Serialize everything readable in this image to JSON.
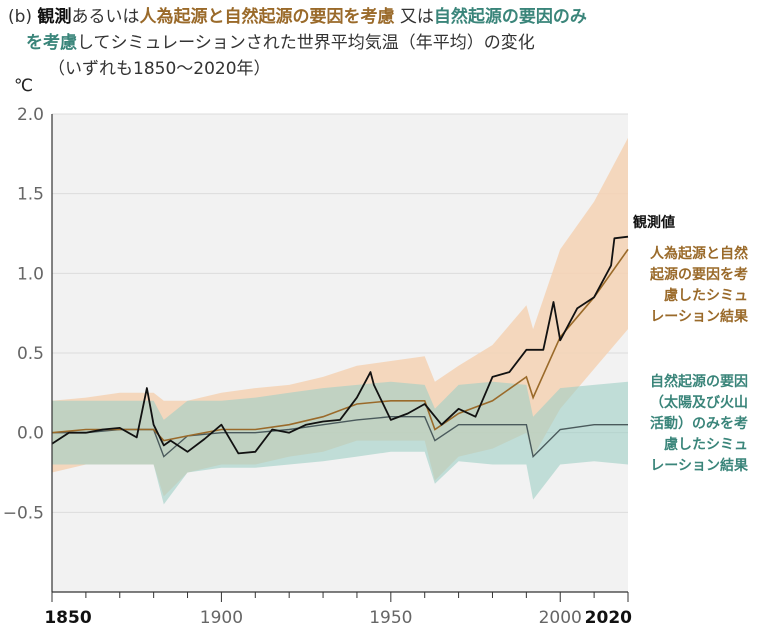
{
  "title": {
    "prefix": "(b) ",
    "observed": "観測",
    "t1": "あるいは",
    "human_natural": "人為起源と自然起源の要因を考慮",
    "t2": " 又は",
    "natural_only": "自然起源の要因のみ",
    "natural_only_2": "を考慮",
    "t3": "してシミュレーションされた世界平均気温（年平均）の変化",
    "line3": "（いずれも1850～2020年）"
  },
  "colors": {
    "observed": "#111111",
    "human_natural_band": "#f5d2b4",
    "human_natural_line": "#9a6a2a",
    "natural_band": "#9ecfc5",
    "natural_line": "#4a5a5c",
    "overlap": "#c3b59c",
    "grid": "#dcdcdc",
    "plot_bg": "#f2f2f2"
  },
  "chart_data": {
    "type": "line",
    "ylabel": "℃",
    "xlim": [
      1850,
      2020
    ],
    "ylim": [
      -1.0,
      2.0
    ],
    "y_ticks": [
      "2.0",
      "1.5",
      "1.0",
      "0.5",
      "0.0",
      "−0.5"
    ],
    "x_ticks": [
      "1850",
      "1900",
      "1950",
      "2000",
      "2020"
    ],
    "annotations": {
      "observed": [
        "観測値"
      ],
      "human_natural": [
        "人為起源と自然",
        "起源の要因を考",
        "慮したシミュ",
        "レーション結果"
      ],
      "natural": [
        "自然起源の要因",
        "（太陽及び火山",
        "活動）のみを考",
        "慮したシミュ",
        "レーション結果"
      ]
    },
    "series": [
      {
        "name": "観測値",
        "x": [
          1850,
          1855,
          1860,
          1865,
          1870,
          1875,
          1878,
          1880,
          1883,
          1885,
          1890,
          1895,
          1900,
          1905,
          1910,
          1915,
          1920,
          1925,
          1930,
          1935,
          1940,
          1944,
          1945,
          1950,
          1955,
          1960,
          1965,
          1970,
          1975,
          1980,
          1985,
          1990,
          1995,
          1998,
          2000,
          2005,
          2010,
          2015,
          2016,
          2020
        ],
        "y": [
          -0.07,
          0.0,
          0.0,
          0.02,
          0.03,
          -0.03,
          0.28,
          0.05,
          -0.08,
          -0.05,
          -0.12,
          -0.04,
          0.05,
          -0.13,
          -0.12,
          0.02,
          0.0,
          0.05,
          0.07,
          0.08,
          0.22,
          0.38,
          0.3,
          0.08,
          0.12,
          0.18,
          0.05,
          0.15,
          0.1,
          0.35,
          0.38,
          0.52,
          0.52,
          0.82,
          0.58,
          0.78,
          0.85,
          1.05,
          1.22,
          1.23
        ]
      },
      {
        "name": "人為起源と自然起源の要因を考慮",
        "x": [
          1850,
          1860,
          1870,
          1880,
          1883,
          1890,
          1900,
          1910,
          1920,
          1930,
          1940,
          1950,
          1960,
          1963,
          1970,
          1980,
          1990,
          1992,
          2000,
          2010,
          2020
        ],
        "y": [
          0.0,
          0.02,
          0.02,
          0.02,
          -0.05,
          -0.02,
          0.02,
          0.02,
          0.05,
          0.1,
          0.18,
          0.2,
          0.2,
          0.02,
          0.12,
          0.2,
          0.35,
          0.22,
          0.6,
          0.85,
          1.15
        ],
        "upper": [
          0.2,
          0.22,
          0.25,
          0.25,
          0.2,
          0.2,
          0.25,
          0.28,
          0.3,
          0.35,
          0.42,
          0.45,
          0.48,
          0.32,
          0.42,
          0.55,
          0.8,
          0.65,
          1.15,
          1.45,
          1.85
        ],
        "lower": [
          -0.25,
          -0.2,
          -0.2,
          -0.2,
          -0.4,
          -0.25,
          -0.2,
          -0.2,
          -0.15,
          -0.12,
          -0.05,
          -0.05,
          -0.05,
          -0.3,
          -0.15,
          -0.1,
          0.0,
          -0.15,
          0.15,
          0.4,
          0.65
        ]
      },
      {
        "name": "自然起源の要因（太陽及び火山活動）のみを考慮",
        "x": [
          1850,
          1860,
          1870,
          1880,
          1883,
          1890,
          1900,
          1910,
          1920,
          1930,
          1940,
          1950,
          1960,
          1963,
          1970,
          1980,
          1990,
          1992,
          2000,
          2010,
          2020
        ],
        "y": [
          0.0,
          0.0,
          0.02,
          0.02,
          -0.15,
          -0.02,
          0.0,
          0.0,
          0.02,
          0.05,
          0.08,
          0.1,
          0.1,
          -0.05,
          0.05,
          0.05,
          0.05,
          -0.15,
          0.02,
          0.05,
          0.05
        ],
        "upper": [
          0.2,
          0.2,
          0.2,
          0.2,
          0.08,
          0.2,
          0.2,
          0.22,
          0.25,
          0.28,
          0.3,
          0.32,
          0.3,
          0.15,
          0.3,
          0.32,
          0.3,
          0.1,
          0.28,
          0.3,
          0.32
        ],
        "lower": [
          -0.2,
          -0.2,
          -0.2,
          -0.2,
          -0.45,
          -0.25,
          -0.22,
          -0.22,
          -0.2,
          -0.18,
          -0.15,
          -0.12,
          -0.12,
          -0.32,
          -0.18,
          -0.2,
          -0.2,
          -0.42,
          -0.2,
          -0.18,
          -0.2
        ]
      }
    ]
  }
}
